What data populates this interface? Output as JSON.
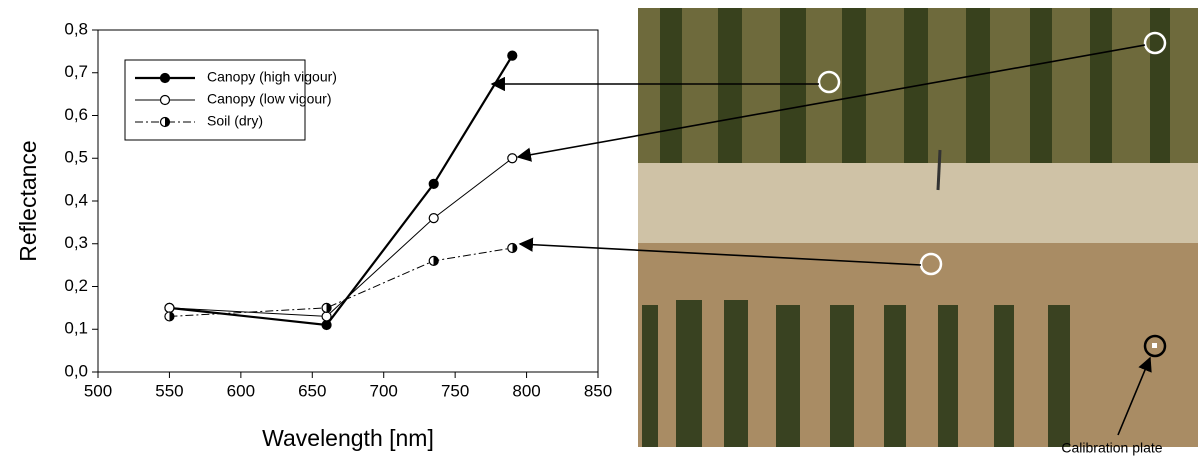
{
  "chart_data": {
    "type": "line",
    "xlabel": "Wavelength [nm]",
    "ylabel": "Reflectance",
    "xlim": [
      500,
      850
    ],
    "xticks": [
      500,
      550,
      600,
      650,
      700,
      750,
      800,
      850
    ],
    "ylim": [
      0,
      0.8
    ],
    "yticks": [
      {
        "value": 0,
        "label": "0,0"
      },
      {
        "value": 0.1,
        "label": "0,1"
      },
      {
        "value": 0.2,
        "label": "0,2"
      },
      {
        "value": 0.3,
        "label": "0,3"
      },
      {
        "value": 0.4,
        "label": "0,4"
      },
      {
        "value": 0.5,
        "label": "0,5"
      },
      {
        "value": 0.6,
        "label": "0,6"
      },
      {
        "value": 0.7,
        "label": "0,7"
      },
      {
        "value": 0.8,
        "label": "0,8"
      }
    ],
    "legend": "upper left",
    "series": [
      {
        "name": "Canopy (high vigour)",
        "color": "#000000",
        "marker": "filled",
        "linestyle": "solid",
        "x": [
          550,
          660,
          735,
          790
        ],
        "values": [
          0.15,
          0.11,
          0.44,
          0.74
        ]
      },
      {
        "name": "Canopy (low vigour)",
        "color": "#000000",
        "marker": "open",
        "linestyle": "solid",
        "x": [
          550,
          660,
          735,
          790
        ],
        "values": [
          0.15,
          0.13,
          0.36,
          0.5
        ]
      },
      {
        "name": "Soil (dry)",
        "color": "#000000",
        "marker": "half",
        "linestyle": "dashdot",
        "x": [
          550,
          660,
          735,
          790
        ],
        "values": [
          0.13,
          0.15,
          0.26,
          0.29
        ]
      }
    ]
  },
  "image": {
    "annotation": "Calibration plate"
  }
}
